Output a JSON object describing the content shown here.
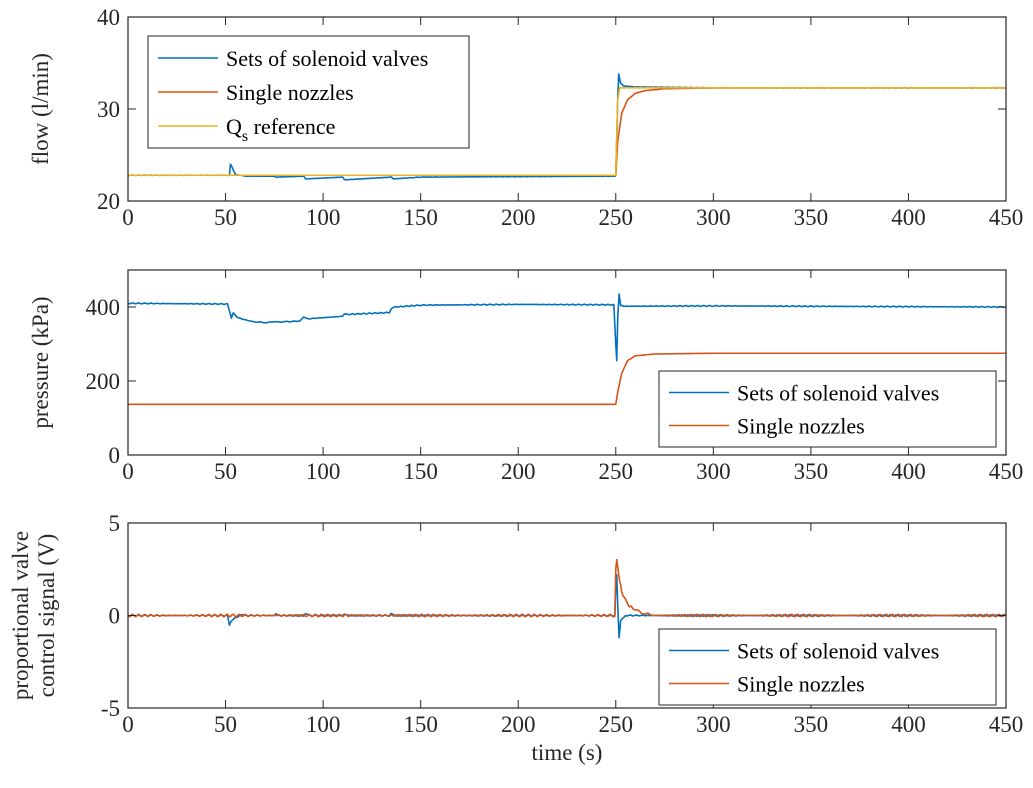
{
  "chart_data": [
    {
      "type": "line",
      "ylabel": "flow (l/min)",
      "xlabel": "",
      "xlim": [
        0,
        450
      ],
      "ylim": [
        20,
        40
      ],
      "xticks": [
        0,
        50,
        100,
        150,
        200,
        250,
        300,
        350,
        400,
        450
      ],
      "yticks": [
        20,
        30,
        40
      ],
      "legend": {
        "placement": "top-left",
        "entries": [
          {
            "label": "Sets of solenoid valves",
            "color": "#0072BD"
          },
          {
            "label": "Single nozzles",
            "color": "#D95319"
          },
          {
            "label_main": "Q",
            "label_sub": "s",
            "label_rest": " reference",
            "color": "#EDB120"
          }
        ]
      },
      "series": [
        {
          "color": "#0072BD",
          "x": [
            0,
            52,
            52.5,
            53.5,
            55,
            60,
            75,
            76,
            90,
            91,
            110,
            111,
            135,
            136,
            150,
            249.5,
            250,
            251,
            251.5,
            252.5,
            254,
            260,
            300,
            450
          ],
          "y": [
            22.8,
            22.8,
            24,
            23.6,
            22.9,
            22.7,
            22.7,
            22.6,
            22.7,
            22.4,
            22.6,
            22.3,
            22.6,
            22.4,
            22.6,
            22.7,
            22.8,
            31,
            33.8,
            32.8,
            32.5,
            32.4,
            32.3,
            32.3
          ]
        },
        {
          "color": "#D95319",
          "x": [
            0,
            250,
            251,
            253,
            256,
            260,
            265,
            275,
            300,
            450
          ],
          "y": [
            22.8,
            22.8,
            26.5,
            29.5,
            31,
            31.7,
            32,
            32.2,
            32.3,
            32.3
          ]
        },
        {
          "color": "#EDB120",
          "x": [
            0,
            250,
            251,
            252,
            254,
            258,
            300,
            450
          ],
          "y": [
            22.8,
            22.8,
            31,
            32.3,
            32.3,
            32.3,
            32.3,
            32.3
          ]
        }
      ]
    },
    {
      "type": "line",
      "ylabel": "pressure (kPa)",
      "xlabel": "",
      "xlim": [
        0,
        450
      ],
      "ylim": [
        0,
        500
      ],
      "xticks": [
        0,
        50,
        100,
        150,
        200,
        250,
        300,
        350,
        400,
        450
      ],
      "yticks": [
        0,
        200,
        400
      ],
      "legend": {
        "placement": "bottom-right",
        "entries": [
          {
            "label": "Sets of solenoid valves",
            "color": "#0072BD"
          },
          {
            "label": "Single nozzles",
            "color": "#D95319"
          }
        ]
      },
      "series": [
        {
          "color": "#0072BD",
          "x": [
            0,
            51,
            52,
            53,
            54,
            56,
            60,
            65,
            70,
            75,
            80,
            88,
            90,
            92,
            110,
            111,
            112,
            134,
            135,
            137,
            150,
            200,
            249,
            250,
            250.5,
            251,
            251.7,
            252.5,
            254,
            300,
            450
          ],
          "y": [
            410,
            408,
            390,
            370,
            385,
            372,
            365,
            360,
            358,
            360,
            360,
            362,
            372,
            368,
            375,
            382,
            380,
            385,
            395,
            400,
            405,
            407,
            406,
            300,
            255,
            370,
            435,
            405,
            402,
            403,
            400
          ]
        },
        {
          "color": "#D95319",
          "x": [
            0,
            250,
            251,
            253,
            256,
            260,
            270,
            300,
            450
          ],
          "y": [
            137,
            137,
            170,
            220,
            255,
            268,
            273,
            275,
            275
          ]
        }
      ]
    },
    {
      "type": "line",
      "ylabel": "proportional valve control signal (V)",
      "ylabel_lines": [
        "proportional valve",
        "control signal (V)"
      ],
      "xlabel": "time (s)",
      "xlim": [
        0,
        450
      ],
      "ylim": [
        -5,
        5
      ],
      "xticks": [
        0,
        50,
        100,
        150,
        200,
        250,
        300,
        350,
        400,
        450
      ],
      "yticks": [
        -5,
        0,
        5
      ],
      "legend": {
        "placement": "bottom-right",
        "entries": [
          {
            "label": "Sets of solenoid valves",
            "color": "#0072BD"
          },
          {
            "label": "Single nozzles",
            "color": "#D95319"
          }
        ]
      },
      "series": [
        {
          "color": "#0072BD",
          "x": [
            0,
            51,
            52,
            53,
            55,
            58,
            60,
            75,
            76,
            77,
            90,
            91,
            93,
            110,
            111,
            113,
            134,
            135,
            137,
            249.5,
            250,
            250.5,
            251,
            251.7,
            252.5,
            255,
            300,
            450
          ],
          "y": [
            0,
            0,
            -0.5,
            -0.3,
            -0.1,
            0,
            0,
            0,
            0.1,
            0,
            0,
            0.1,
            0,
            0,
            0.1,
            0,
            0,
            0.1,
            0,
            0,
            1.5,
            2.2,
            0.5,
            -1.2,
            -0.3,
            0,
            0,
            0
          ]
        },
        {
          "color": "#D95319",
          "x": [
            0,
            249.5,
            250,
            250.5,
            251.5,
            253,
            256,
            260,
            265,
            270,
            450
          ],
          "y": [
            0,
            0,
            2.5,
            3,
            2.2,
            1.3,
            0.6,
            0.3,
            0.1,
            0,
            0
          ]
        }
      ]
    }
  ]
}
